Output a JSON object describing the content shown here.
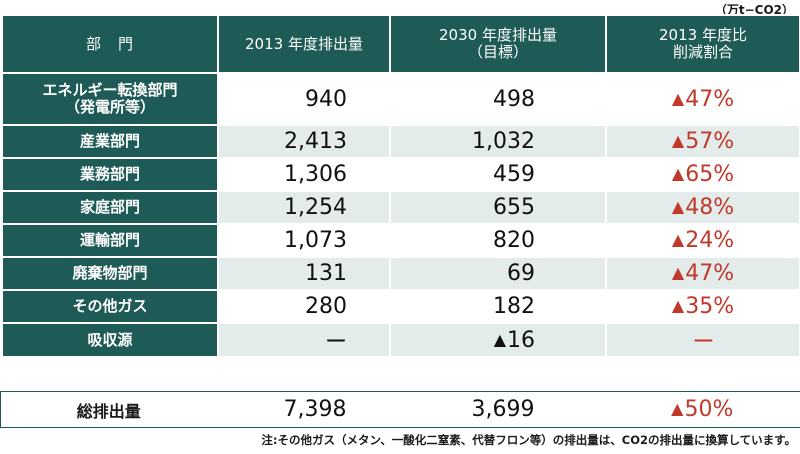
{
  "unit": "（万t−CO2）",
  "headers": {
    "sector": "部　門",
    "col1": "2013 年度排出量",
    "col2_line1": "2030 年度排出量",
    "col2_line2": "（目標）",
    "col3_line1": "2013 年度比",
    "col3_line2": "削減割合"
  },
  "rows": [
    {
      "sector_line1": "エネルギー転換部門",
      "sector_line2": "（発電所等）",
      "e2013": "940",
      "t2030_mark": "",
      "t2030": "498",
      "r_mark": "▲",
      "r": "47%"
    },
    {
      "sector_line1": "産業部門",
      "sector_line2": "",
      "e2013": "2,413",
      "t2030_mark": "",
      "t2030": "1,032",
      "r_mark": "▲",
      "r": "57%"
    },
    {
      "sector_line1": "業務部門",
      "sector_line2": "",
      "e2013": "1,306",
      "t2030_mark": "",
      "t2030": "459",
      "r_mark": "▲",
      "r": "65%"
    },
    {
      "sector_line1": "家庭部門",
      "sector_line2": "",
      "e2013": "1,254",
      "t2030_mark": "",
      "t2030": "655",
      "r_mark": "▲",
      "r": "48%"
    },
    {
      "sector_line1": "運輸部門",
      "sector_line2": "",
      "e2013": "1,073",
      "t2030_mark": "",
      "t2030": "820",
      "r_mark": "▲",
      "r": "24%"
    },
    {
      "sector_line1": "廃棄物部門",
      "sector_line2": "",
      "e2013": "131",
      "t2030_mark": "",
      "t2030": "69",
      "r_mark": "▲",
      "r": "47%"
    },
    {
      "sector_line1": "その他ガス",
      "sector_line2": "",
      "e2013": "280",
      "t2030_mark": "",
      "t2030": "182",
      "r_mark": "▲",
      "r": "35%"
    },
    {
      "sector_line1": "吸収源",
      "sector_line2": "",
      "e2013": "ー",
      "t2030_mark": "▲",
      "t2030": "16",
      "r_mark": "",
      "r": "ー"
    }
  ],
  "total": {
    "label": "総排出量",
    "e2013": "7,398",
    "t2030": "3,699",
    "r_mark": "▲",
    "r": "50%"
  },
  "note": "注:その他ガス（メタン、一酸化二窒素、代替フロン等）の排出量は、CO2の排出量に換算しています。"
}
